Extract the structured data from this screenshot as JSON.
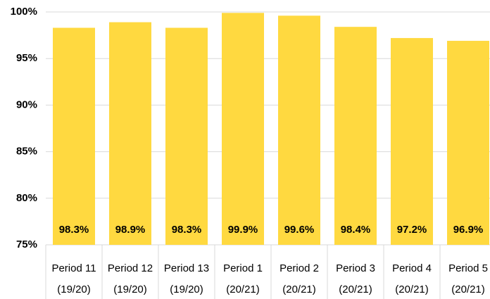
{
  "chart_data": {
    "type": "bar",
    "categories": [
      [
        "Period 11",
        "(19/20)"
      ],
      [
        "Period 12",
        "(19/20)"
      ],
      [
        "Period 13",
        "(19/20)"
      ],
      [
        "Period 1",
        "(20/21)"
      ],
      [
        "Period 2",
        "(20/21)"
      ],
      [
        "Period 3",
        "(20/21)"
      ],
      [
        "Period 4",
        "(20/21)"
      ],
      [
        "Period 5",
        "(20/21)"
      ]
    ],
    "values": [
      98.3,
      98.9,
      98.3,
      99.9,
      99.6,
      98.4,
      97.2,
      96.9
    ],
    "value_labels": [
      "98.3%",
      "98.9%",
      "98.3%",
      "99.9%",
      "99.6%",
      "98.4%",
      "97.2%",
      "96.9%"
    ],
    "color": "#ffd940",
    "ylim": [
      75,
      100
    ],
    "yticks": [
      {
        "value": 75,
        "label": "75%"
      },
      {
        "value": 80,
        "label": "80%"
      },
      {
        "value": 85,
        "label": "85%"
      },
      {
        "value": 90,
        "label": "90%"
      },
      {
        "value": 95,
        "label": "95%"
      },
      {
        "value": 100,
        "label": "100%"
      }
    ],
    "grid": true
  }
}
